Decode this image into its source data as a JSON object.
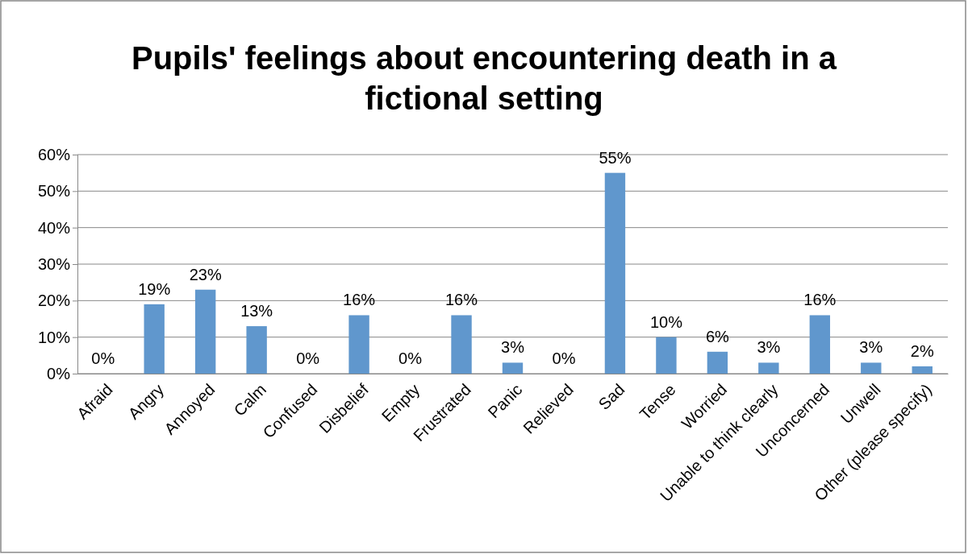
{
  "chart_data": {
    "type": "bar",
    "title": "Pupils' feelings about encountering death in a fictional setting",
    "categories": [
      "Afraid",
      "Angry",
      "Annoyed",
      "Calm",
      "Confused",
      "Disbelief",
      "Empty",
      "Frustrated",
      "Panic",
      "Relieved",
      "Sad",
      "Tense",
      "Worried",
      "Unable to think clearly",
      "Unconcerned",
      "Unwell",
      "Other (please specify)"
    ],
    "values": [
      0,
      19,
      23,
      13,
      0,
      16,
      0,
      16,
      3,
      0,
      55,
      10,
      6,
      3,
      16,
      3,
      2
    ],
    "value_labels": [
      "0%",
      "19%",
      "23%",
      "13%",
      "0%",
      "16%",
      "0%",
      "16%",
      "3%",
      "0%",
      "55%",
      "10%",
      "6%",
      "3%",
      "16%",
      "3%",
      "2%"
    ],
    "color": "#6097cd",
    "ylim": [
      0,
      60
    ],
    "yticks": [
      {
        "value": 0,
        "label": "0%"
      },
      {
        "value": 10,
        "label": "10%"
      },
      {
        "value": 20,
        "label": "20%"
      },
      {
        "value": 30,
        "label": "30%"
      },
      {
        "value": 40,
        "label": "40%"
      },
      {
        "value": 50,
        "label": "50%"
      },
      {
        "value": 60,
        "label": "60%"
      }
    ],
    "grid": "y"
  }
}
